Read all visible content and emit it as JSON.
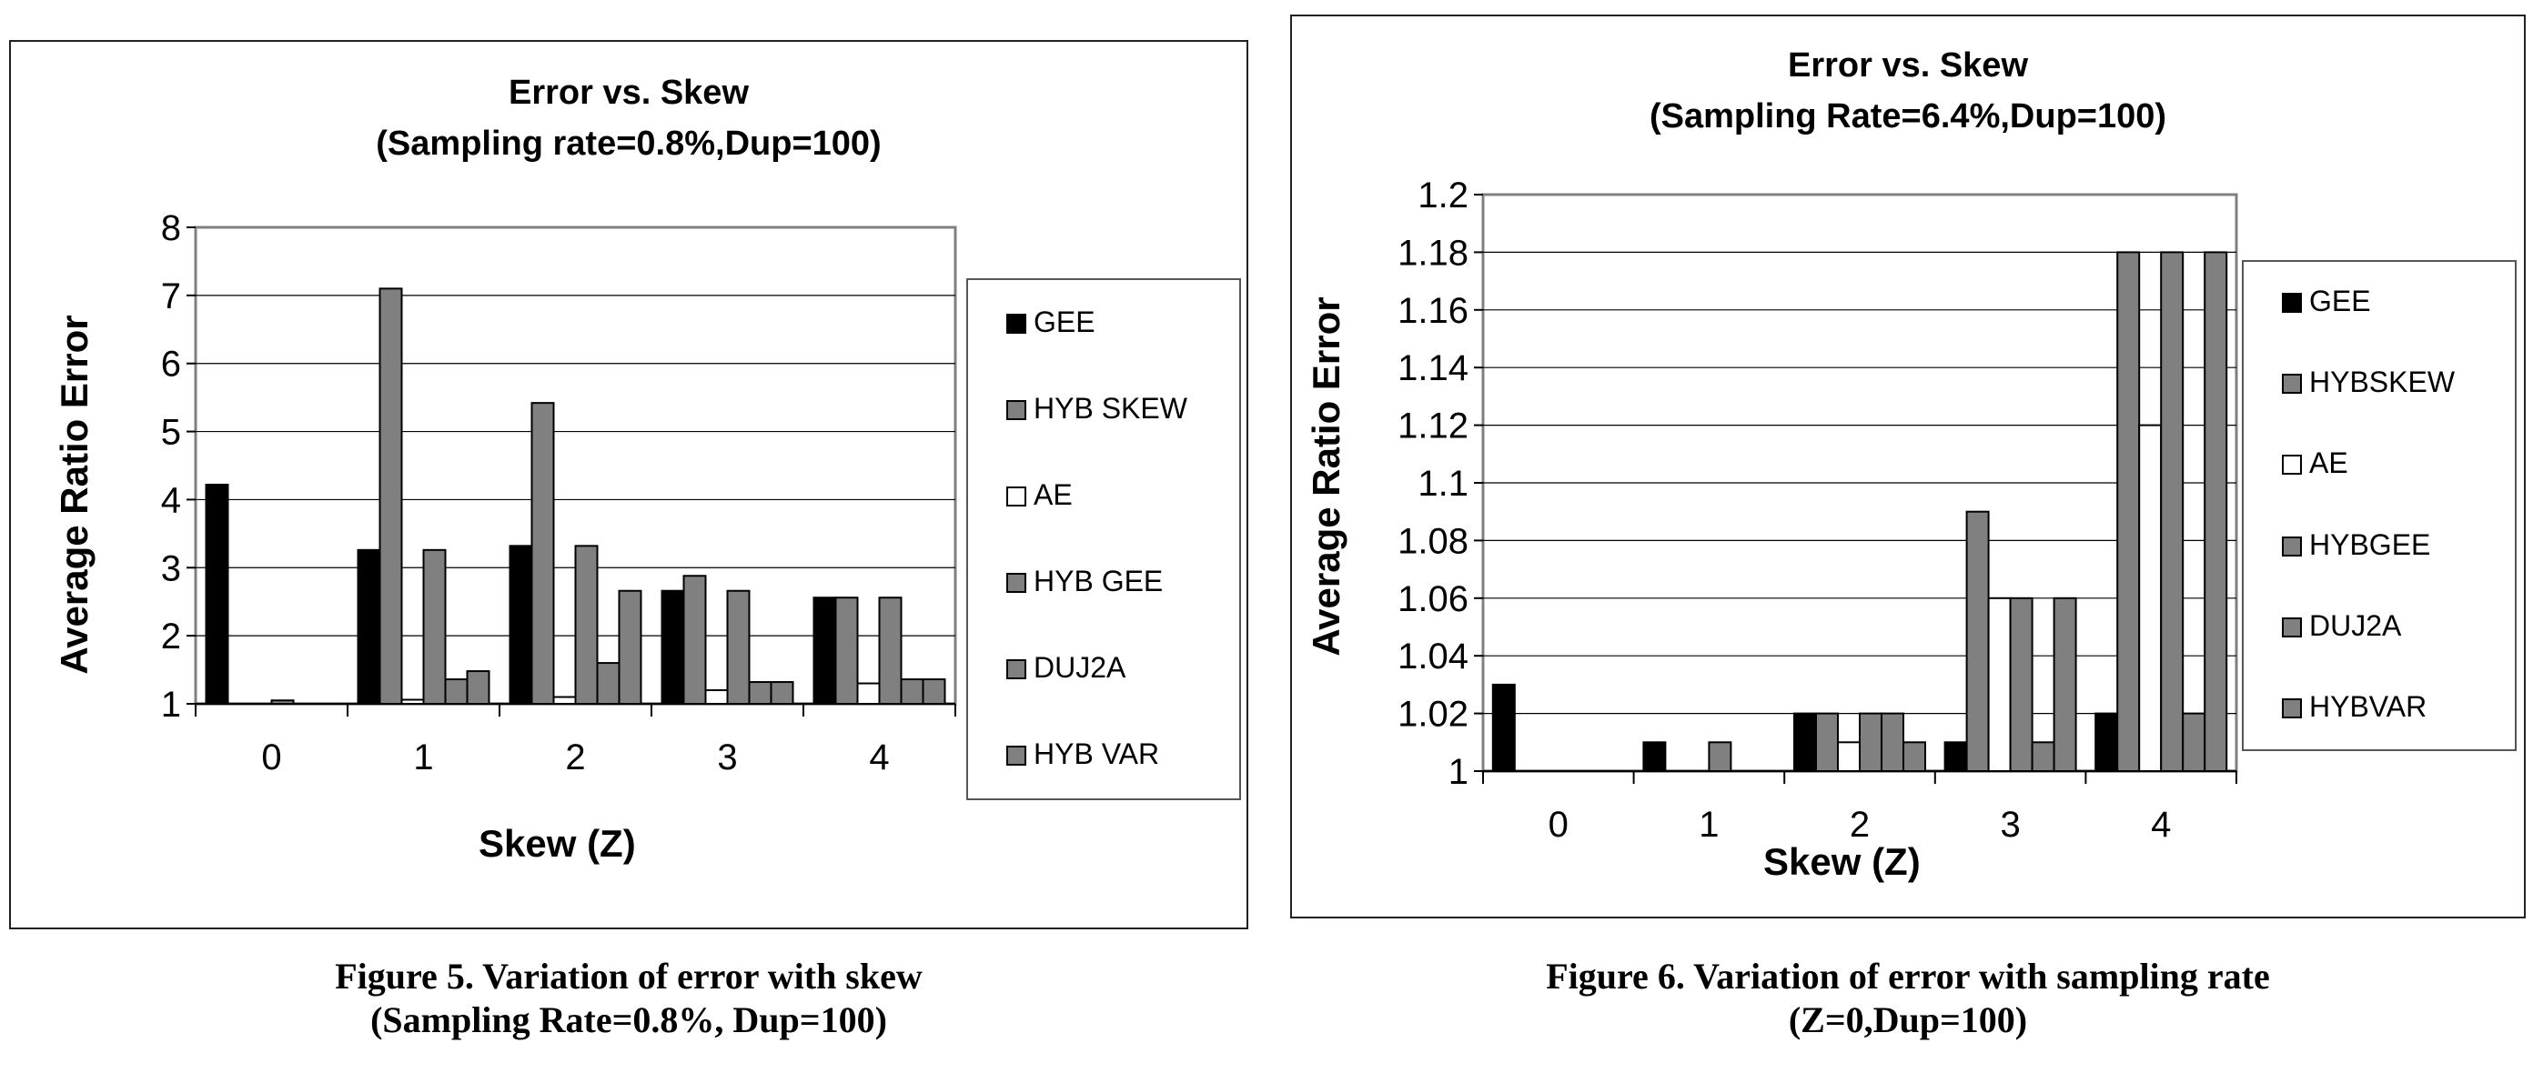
{
  "chart_data": [
    {
      "type": "bar",
      "title": "Error vs. Skew",
      "subtitle": "(Sampling rate=0.8%,Dup=100)",
      "xlabel": "Skew (Z)",
      "ylabel": "Average Ratio Error",
      "categories": [
        "0",
        "1",
        "2",
        "3",
        "4"
      ],
      "ylim": [
        1,
        8
      ],
      "yticks": [
        "1",
        "2",
        "3",
        "4",
        "5",
        "6",
        "7",
        "8"
      ],
      "grid": true,
      "legend_position": "right",
      "series": [
        {
          "name": "GEE",
          "color": "#000000",
          "values": [
            4.22,
            3.26,
            3.32,
            2.66,
            2.56
          ]
        },
        {
          "name": "HYB SKEW",
          "color": "#808080",
          "values": [
            1.0,
            7.1,
            5.42,
            2.88,
            2.56
          ]
        },
        {
          "name": "AE",
          "color": "#ffffff",
          "values": [
            1.0,
            1.06,
            1.1,
            1.2,
            1.3
          ]
        },
        {
          "name": "HYB GEE",
          "color": "#808080",
          "values": [
            1.05,
            3.26,
            3.32,
            2.66,
            2.56
          ]
        },
        {
          "name": "DUJ2A",
          "color": "#808080",
          "values": [
            1.0,
            1.36,
            1.6,
            1.32,
            1.36
          ]
        },
        {
          "name": "HYB VAR",
          "color": "#808080",
          "values": [
            1.0,
            1.48,
            2.66,
            1.32,
            1.36
          ]
        }
      ]
    },
    {
      "type": "bar",
      "title": "Error vs. Skew",
      "subtitle": "(Sampling Rate=6.4%,Dup=100)",
      "xlabel": "Skew (Z)",
      "ylabel": "Average Ratio Error",
      "categories": [
        "0",
        "1",
        "2",
        "3",
        "4"
      ],
      "ylim": [
        1,
        1.2
      ],
      "yticks": [
        "1",
        "1.02",
        "1.04",
        "1.06",
        "1.08",
        "1.1",
        "1.12",
        "1.14",
        "1.16",
        "1.18",
        "1.2"
      ],
      "grid": true,
      "legend_position": "right",
      "series": [
        {
          "name": "GEE",
          "color": "#000000",
          "values": [
            1.03,
            1.01,
            1.02,
            1.01,
            1.02
          ]
        },
        {
          "name": "HYBSKEW",
          "color": "#808080",
          "values": [
            1.0,
            1.0,
            1.02,
            1.09,
            1.18
          ]
        },
        {
          "name": "AE",
          "color": "#ffffff",
          "values": [
            1.0,
            1.0,
            1.01,
            1.06,
            1.12
          ]
        },
        {
          "name": "HYBGEE",
          "color": "#808080",
          "values": [
            1.0,
            1.01,
            1.02,
            1.06,
            1.18
          ]
        },
        {
          "name": "DUJ2A",
          "color": "#808080",
          "values": [
            1.0,
            1.0,
            1.02,
            1.01,
            1.02
          ]
        },
        {
          "name": "HYBVAR",
          "color": "#808080",
          "values": [
            1.0,
            1.0,
            1.01,
            1.06,
            1.18
          ]
        }
      ]
    }
  ],
  "captions": [
    {
      "line1": "Figure 5. Variation of error with skew",
      "line2": "(Sampling Rate=0.8%, Dup=100)"
    },
    {
      "line1": "Figure 6. Variation of error with sampling rate",
      "line2": "(Z=0,Dup=100)"
    }
  ]
}
